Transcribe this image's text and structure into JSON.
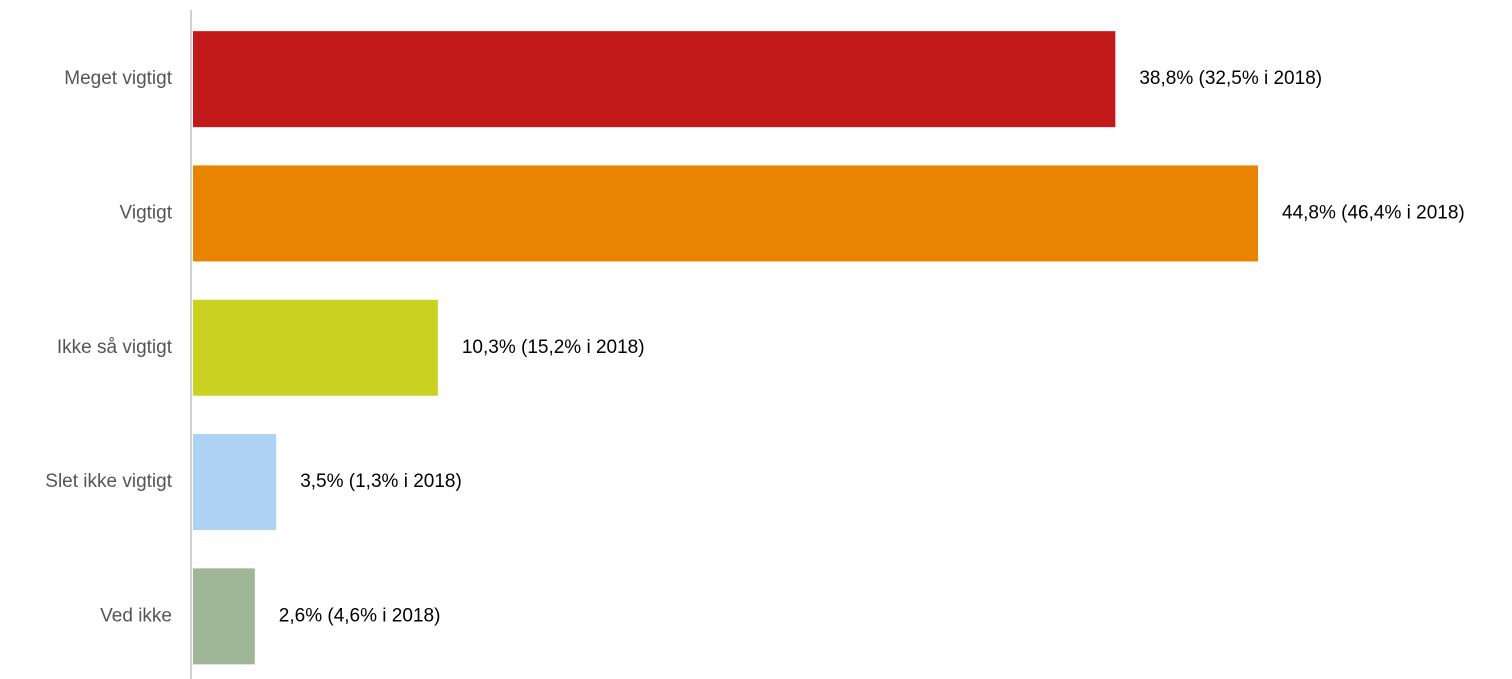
{
  "chart_data": {
    "type": "barh",
    "categories": [
      "Meget vigtigt",
      "Vigtigt",
      "Ikke så vigtigt",
      "Slet ikke vigtigt",
      "Ved ikke"
    ],
    "values": [
      38.8,
      44.8,
      10.3,
      3.5,
      2.6
    ],
    "value_labels": [
      "38,8% (32,5% i 2018)",
      "44,8% (46,4% i 2018)",
      "10,3% (15,2% i 2018)",
      "3,5% (1,3% i 2018)",
      "2,6% (4,6% i 2018)"
    ],
    "colors": [
      "#c2191a",
      "#e98400",
      "#cad221",
      "#aed2f4",
      "#9fb796"
    ]
  }
}
